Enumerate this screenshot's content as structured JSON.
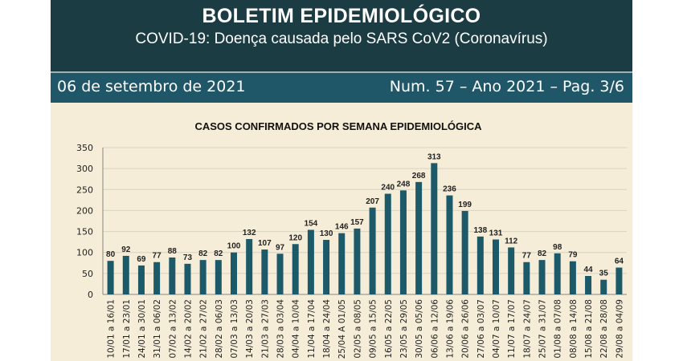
{
  "header": {
    "title": "BOLETIM EPIDEMIOLÓGICO",
    "subtitle": "COVID-19: Doença  causada pelo SARS CoV2 (Coronavírus)"
  },
  "datebar": {
    "date": "06 de setembro de 2021",
    "issue": "Num. 57 – Ano 2021 – Pag. 3/6"
  },
  "chart_data": {
    "type": "bar",
    "title": "CASOS CONFIRMADOS POR SEMANA EPIDEMIOLÓGICA",
    "xlabel": "",
    "ylabel": "",
    "ylim": [
      0,
      350
    ],
    "yticks": [
      0,
      50,
      100,
      150,
      200,
      250,
      300,
      350
    ],
    "grid": true,
    "bar_color": "#1d5a69",
    "categories": [
      "10/01 a 16/01",
      "17/01 a 23/01",
      "24/01 a 30/01",
      "31/01 a 06/02",
      "07/02 a 13/02",
      "14/02 a 20/02",
      "21/02 a 27/02",
      "28/02 a 06/03",
      "07/03 a 13/03",
      "14/03 a 20/03",
      "21/03 a 27/03",
      "28/03 a 03/04",
      "04/04 a 10/04",
      "11/04 a 17/04",
      "18/04 a 24/04",
      "25/04 A 01/05",
      "02/05 a 08/05",
      "09/05 a 15/05",
      "16/05 a 22/05",
      "23/05 a 29/05",
      "30/05 a 05/06",
      "06/06 a 12/06",
      "13/06 a 19/06",
      "20/06 a 26/06",
      "27/06 a 03/07",
      "04/07 a 10/07",
      "11/07 a 17/07",
      "18/07 a 24/07",
      "25/07 a 31/07",
      "01/08 a 07/08",
      "08/08 a 14/08",
      "15/08 a 21/08",
      "22/08 a 28/08",
      "29/08 a 04/09"
    ],
    "values": [
      80,
      92,
      69,
      77,
      88,
      73,
      82,
      82,
      100,
      132,
      107,
      97,
      120,
      154,
      130,
      146,
      157,
      207,
      240,
      248,
      268,
      313,
      236,
      199,
      138,
      131,
      112,
      77,
      82,
      98,
      79,
      44,
      35,
      64
    ]
  }
}
